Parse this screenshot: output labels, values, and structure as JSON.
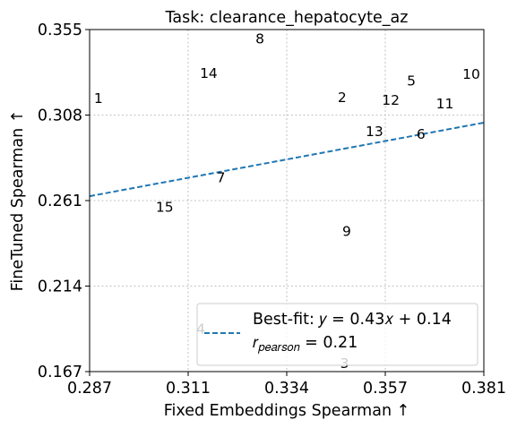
{
  "chart_data": {
    "type": "scatter",
    "title": "Task: clearance_hepatocyte_az",
    "xlabel": "Fixed Embeddings Spearman ↑",
    "ylabel": "FineTuned Spearman ↑",
    "xlim": [
      0.287,
      0.381
    ],
    "ylim": [
      0.167,
      0.355
    ],
    "xticks": [
      "0.287",
      "0.311",
      "0.334",
      "0.357",
      "0.381"
    ],
    "yticks": [
      "0.167",
      "0.214",
      "0.261",
      "0.308",
      "0.355"
    ],
    "grid": true,
    "points": [
      {
        "label": "1",
        "x": 0.2891,
        "y": 0.3171
      },
      {
        "label": "2",
        "x": 0.3472,
        "y": 0.3176
      },
      {
        "label": "3",
        "x": 0.3478,
        "y": 0.1715
      },
      {
        "label": "4",
        "x": 0.3135,
        "y": 0.1905
      },
      {
        "label": "5",
        "x": 0.3637,
        "y": 0.3267
      },
      {
        "label": "6",
        "x": 0.366,
        "y": 0.2975
      },
      {
        "label": "7",
        "x": 0.3183,
        "y": 0.2735
      },
      {
        "label": "8",
        "x": 0.3276,
        "y": 0.3498
      },
      {
        "label": "9",
        "x": 0.3483,
        "y": 0.2441
      },
      {
        "label": "10",
        "x": 0.378,
        "y": 0.3303
      },
      {
        "label": "11",
        "x": 0.3717,
        "y": 0.3141
      },
      {
        "label": "12",
        "x": 0.3588,
        "y": 0.3161
      },
      {
        "label": "13",
        "x": 0.3549,
        "y": 0.299
      },
      {
        "label": "14",
        "x": 0.3154,
        "y": 0.3308
      },
      {
        "label": "15",
        "x": 0.3049,
        "y": 0.2574
      }
    ],
    "fit": {
      "slope": 0.43,
      "intercept": 0.14,
      "color": "#1f77b4",
      "style": "dashed"
    },
    "legend": {
      "position": "lower-right",
      "fit_label": "Best-fit: 𝑦 = 0.43𝑥 + 0.14",
      "r_prefix": "𝑟",
      "r_sub": "𝑝𝑒𝑎𝑟𝑠𝑜𝑛",
      "r_value": " = 0.21"
    }
  }
}
